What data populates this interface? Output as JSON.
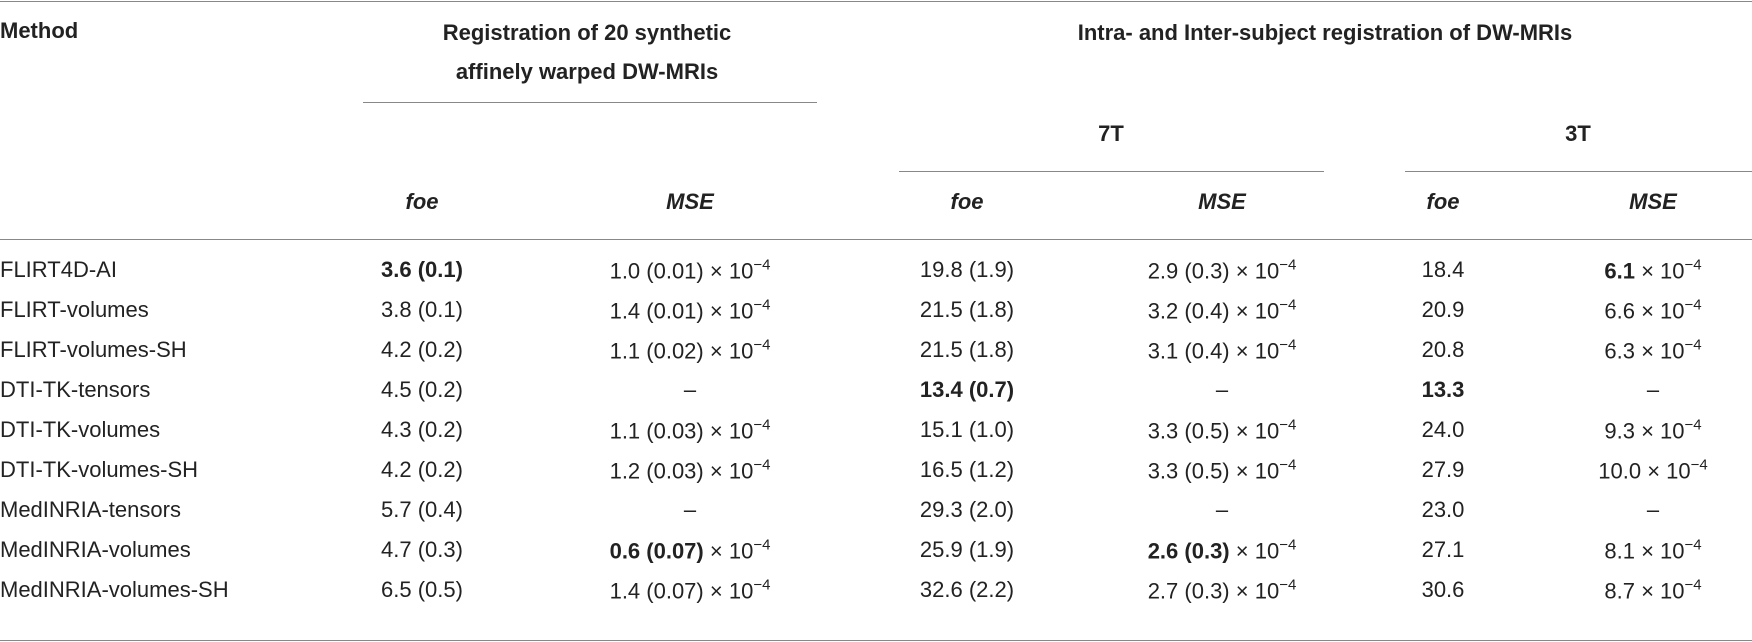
{
  "header": {
    "method": "Method",
    "group1": [
      "Registration of 20 synthetic",
      "affinely warped DW-MRIs"
    ],
    "group2": "Intra- and Inter-subject registration of DW-MRIs",
    "subgroups": [
      "7T",
      "3T"
    ],
    "columns": [
      "foe",
      "MSE",
      "foe",
      "MSE",
      "foe",
      "MSE"
    ]
  },
  "table": {
    "rows": [
      {
        "method": "FLIRT4D-AI",
        "cells": [
          {
            "text": "3.6 (0.1)",
            "bold": true
          },
          {
            "text": "1.0 (0.01)",
            "times": "× 10",
            "exp": "−4"
          },
          "19.8 (1.9)",
          {
            "text": "2.9 (0.3)",
            "times": "× 10",
            "exp": "−4"
          },
          "18.4",
          {
            "text": "6.1",
            "bold": true,
            "times": "× 10",
            "exp": "−4"
          }
        ]
      },
      {
        "method": "FLIRT-volumes",
        "cells": [
          "3.8 (0.1)",
          {
            "text": "1.4 (0.01)",
            "times": "× 10",
            "exp": "−4"
          },
          "21.5 (1.8)",
          {
            "text": "3.2 (0.4)",
            "times": "× 10",
            "exp": "−4"
          },
          "20.9",
          {
            "text": "6.6",
            "times": "× 10",
            "exp": "−4"
          }
        ]
      },
      {
        "method": "FLIRT-volumes-SH",
        "cells": [
          "4.2 (0.2)",
          {
            "text": "1.1 (0.02)",
            "times": "× 10",
            "exp": "−4"
          },
          "21.5 (1.8)",
          {
            "text": "3.1 (0.4)",
            "times": "× 10",
            "exp": "−4"
          },
          "20.8",
          {
            "text": "6.3",
            "times": "× 10",
            "exp": "−4"
          }
        ]
      },
      {
        "method": "DTI-TK-tensors",
        "cells": [
          "4.5 (0.2)",
          "–",
          {
            "text": "13.4 (0.7)",
            "bold": true
          },
          "–",
          {
            "text": "13.3",
            "bold": true
          },
          "–"
        ]
      },
      {
        "method": "DTI-TK-volumes",
        "cells": [
          "4.3 (0.2)",
          {
            "text": "1.1 (0.03)",
            "times": "× 10",
            "exp": "−4"
          },
          "15.1 (1.0)",
          {
            "text": "3.3 (0.5)",
            "times": "× 10",
            "exp": "−4"
          },
          "24.0",
          {
            "text": "9.3",
            "times": "× 10",
            "exp": "−4"
          }
        ]
      },
      {
        "method": "DTI-TK-volumes-SH",
        "cells": [
          "4.2 (0.2)",
          {
            "text": "1.2 (0.03)",
            "times": "× 10",
            "exp": "−4"
          },
          "16.5 (1.2)",
          {
            "text": "3.3 (0.5)",
            "times": "× 10",
            "exp": "−4"
          },
          "27.9",
          {
            "text": "10.0",
            "times": "× 10",
            "exp": "−4"
          }
        ]
      },
      {
        "method": "MedINRIA-tensors",
        "cells": [
          "5.7 (0.4)",
          "–",
          "29.3 (2.0)",
          "–",
          "23.0",
          "–"
        ]
      },
      {
        "method": "MedINRIA-volumes",
        "cells": [
          "4.7 (0.3)",
          {
            "text": "0.6 (0.07)",
            "bold": true,
            "times": "× 10",
            "exp": "−4"
          },
          "25.9 (1.9)",
          {
            "text": "2.6 (0.3)",
            "bold": true,
            "times": "× 10",
            "exp": "−4"
          },
          "27.1",
          {
            "text": "8.1",
            "times": "× 10",
            "exp": "−4"
          }
        ]
      },
      {
        "method": "MedINRIA-volumes-SH",
        "cells": [
          "6.5 (0.5)",
          {
            "text": "1.4 (0.07)",
            "times": "× 10",
            "exp": "−4"
          },
          "32.6 (2.2)",
          {
            "text": "2.7 (0.3)",
            "times": "× 10",
            "exp": "−4"
          },
          "30.6",
          {
            "text": "8.7",
            "times": "× 10",
            "exp": "−4"
          }
        ]
      }
    ]
  }
}
